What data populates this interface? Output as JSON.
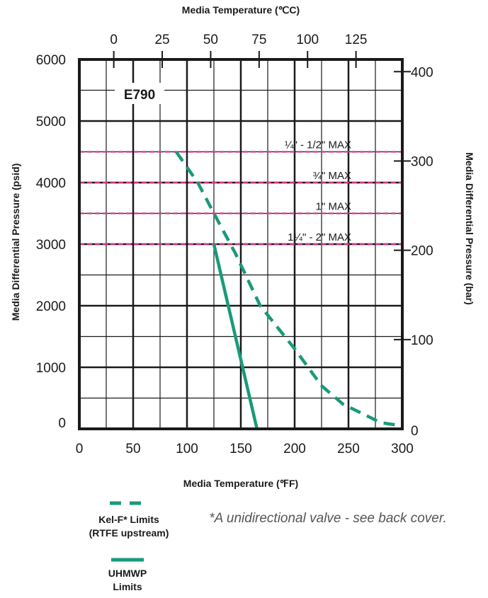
{
  "chart_data": {
    "type": "line",
    "model_label": "E790",
    "top_axis": {
      "title": "Media Temperature (℃C)",
      "unit": "C",
      "ticks": [
        0,
        25,
        50,
        75,
        100,
        125
      ]
    },
    "bottom_axis": {
      "title": "Media Temperature (℉F)",
      "unit": "F",
      "range": [
        0,
        300
      ],
      "ticks": [
        0,
        50,
        100,
        150,
        200,
        250,
        300
      ]
    },
    "left_axis": {
      "title": "Media Differential Pressure (psid)",
      "unit": "psid",
      "range": [
        0,
        6000
      ],
      "ticks": [
        0,
        1000,
        2000,
        3000,
        4000,
        5000,
        6000
      ]
    },
    "right_axis": {
      "title": "Media Differential Pressure (bar)",
      "unit": "bar",
      "ticks": [
        0,
        100,
        200,
        300,
        400
      ]
    },
    "grid": true,
    "max_pressure_lines": [
      {
        "label": "¼\" - 1/2\" MAX",
        "psid": 4500
      },
      {
        "label": "¾\" MAX",
        "psid": 4000
      },
      {
        "label": "1\" MAX",
        "psid": 3500
      },
      {
        "label": "1¼\" - 2\" MAX",
        "psid": 3000
      }
    ],
    "series": [
      {
        "name": "Kel-F* Limits (RTFE upstream)",
        "style": "dashed",
        "color": "#1a9a7a",
        "points": [
          {
            "x": 90,
            "y": 4500
          },
          {
            "x": 110,
            "y": 4000
          },
          {
            "x": 125,
            "y": 3500
          },
          {
            "x": 145,
            "y": 2850
          },
          {
            "x": 168,
            "y": 2000
          },
          {
            "x": 200,
            "y": 1300
          },
          {
            "x": 225,
            "y": 700
          },
          {
            "x": 245,
            "y": 400
          },
          {
            "x": 265,
            "y": 230
          },
          {
            "x": 280,
            "y": 100
          },
          {
            "x": 300,
            "y": 50
          }
        ]
      },
      {
        "name": "UHMWP Limits",
        "style": "solid",
        "color": "#1a9a7a",
        "points": [
          {
            "x": 125,
            "y": 3000
          },
          {
            "x": 165,
            "y": 0
          }
        ]
      }
    ],
    "legend": [
      {
        "line1": "Kel-F* Limits",
        "line2": "(RTFE upstream)",
        "style": "dashed"
      },
      {
        "line1": "UHMWP",
        "line2": "Limits",
        "style": "solid"
      }
    ],
    "footnote": "*A unidirectional valve - see back cover.",
    "colors": {
      "series": "#1a9a7a",
      "max_line": "#d6338a",
      "grid": "#1a1a1a"
    }
  }
}
